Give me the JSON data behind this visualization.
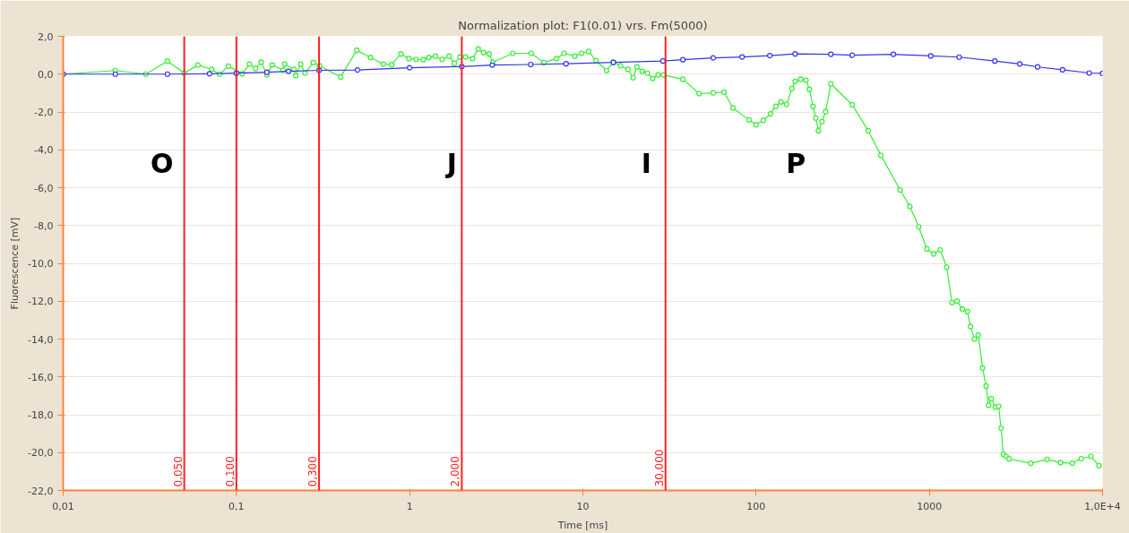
{
  "chart_data": {
    "type": "line",
    "title": "Normalization plot: F1(0.01) vrs. Fm(5000)",
    "xlabel": "Time [ms]",
    "ylabel": "Fluorescence [mV]",
    "log": "x",
    "grid": "y",
    "marker": "circle",
    "line_style": "solid",
    "xlim": [
      0.01,
      10000
    ],
    "ylim": [
      -22,
      2
    ],
    "xticks": [
      {
        "value": 0.01,
        "label": "0,01"
      },
      {
        "value": 0.1,
        "label": "0,1"
      },
      1,
      10,
      100,
      1000,
      {
        "value": 10000,
        "label": "1,0E+4"
      }
    ],
    "yticks": [
      {
        "value": 2,
        "label": "2,0"
      },
      {
        "value": 0,
        "label": "0,0"
      },
      {
        "value": -2,
        "label": "-2,0"
      },
      {
        "value": -4,
        "label": "-4,0"
      },
      {
        "value": -6,
        "label": "-6,0"
      },
      {
        "value": -8,
        "label": "-8,0"
      },
      {
        "value": -10,
        "label": "-10,0"
      },
      {
        "value": -12,
        "label": "-12,0"
      },
      {
        "value": -14,
        "label": "-14,0"
      },
      {
        "value": -16,
        "label": "-16,0"
      },
      {
        "value": -18,
        "label": "-18,0"
      },
      {
        "value": -20,
        "label": "-20,0"
      },
      {
        "value": -22,
        "label": "-22,0"
      }
    ],
    "series": [
      {
        "color": "#33ee33",
        "x": [
          0.01,
          0.02,
          0.03,
          0.04,
          0.05,
          0.06,
          0.072,
          0.08,
          0.09,
          0.108,
          0.119,
          0.129,
          0.139,
          0.15,
          0.161,
          0.186,
          0.19,
          0.215,
          0.22,
          0.235,
          0.249,
          0.278,
          0.302,
          0.4,
          0.495,
          0.595,
          0.705,
          0.788,
          0.89,
          0.99,
          1.09,
          1.2,
          1.29,
          1.41,
          1.54,
          1.69,
          1.81,
          1.95,
          2.1,
          2.31,
          2.49,
          2.67,
          2.88,
          3.02,
          3.94,
          5.03,
          5.96,
          7.05,
          7.78,
          8.99,
          9.82,
          10.8,
          11.9,
          13.7,
          15,
          16.5,
          18.2,
          19.5,
          20.5,
          22,
          23.6,
          25.3,
          27.2,
          29.2,
          37.8,
          46.9,
          56.6,
          65.3,
          73.5,
          91,
          100,
          110,
          121,
          130,
          139,
          150,
          161,
          168,
          181,
          194,
          203,
          213,
          221,
          229,
          240,
          252,
          270,
          359,
          444,
          525,
          678,
          772,
          869,
          968,
          1059,
          1156,
          1259,
          1352,
          1446,
          1552,
          1660,
          1729,
          1820,
          1915,
          2030,
          2128,
          2197,
          2277,
          2406,
          2512,
          2594,
          2678,
          2775,
          2885,
          3846,
          4786,
          5715,
          6686,
          7530,
          8570,
          9540
        ],
        "values": [
          0.0,
          0.19,
          0.0,
          0.69,
          0.06,
          0.48,
          0.25,
          0.0,
          0.42,
          0.02,
          0.53,
          0.3,
          0.63,
          -0.04,
          0.48,
          0.21,
          0.53,
          0.25,
          -0.08,
          0.53,
          0.06,
          0.61,
          0.44,
          -0.15,
          1.26,
          0.88,
          0.53,
          0.5,
          1.07,
          0.82,
          0.78,
          0.76,
          0.88,
          0.95,
          0.78,
          0.95,
          0.57,
          0.91,
          0.91,
          0.82,
          1.33,
          1.14,
          1.07,
          0.63,
          1.1,
          1.1,
          0.61,
          0.82,
          1.1,
          0.95,
          1.1,
          1.2,
          0.72,
          0.19,
          0.63,
          0.44,
          0.25,
          -0.19,
          0.38,
          0.15,
          0.06,
          -0.23,
          -0.04,
          -0.04,
          -0.27,
          -1.03,
          -0.99,
          -0.95,
          -1.79,
          -2.42,
          -2.67,
          -2.44,
          -2.1,
          -1.7,
          -1.47,
          -1.6,
          -0.76,
          -0.38,
          -0.27,
          -0.32,
          -0.8,
          -1.71,
          -2.32,
          -2.99,
          -2.51,
          -1.98,
          -0.51,
          -1.62,
          -2.99,
          -4.29,
          -6.12,
          -6.99,
          -8.07,
          -9.24,
          -9.5,
          -9.29,
          -10.2,
          -12.07,
          -11.99,
          -12.42,
          -12.55,
          -13.34,
          -14.0,
          -13.79,
          -15.53,
          -16.48,
          -17.5,
          -17.15,
          -17.6,
          -17.55,
          -18.71,
          -20.09,
          -20.2,
          -20.33,
          -20.56,
          -20.36,
          -20.53,
          -20.56,
          -20.32,
          -20.2,
          -20.69
        ]
      },
      {
        "color": "#3333ee",
        "x": [
          0.01,
          0.02,
          0.04,
          0.07,
          0.1,
          0.15,
          0.2,
          0.3,
          0.5,
          1,
          2,
          3,
          5,
          8,
          15,
          29,
          37.8,
          56.6,
          83,
          120,
          168,
          270,
          359,
          620,
          1019,
          1486,
          2387,
          3325,
          4216,
          5875,
          8375,
          10000
        ],
        "values": [
          0.0,
          0.0,
          0.0,
          0.02,
          0.05,
          0.1,
          0.15,
          0.2,
          0.22,
          0.34,
          0.4,
          0.48,
          0.51,
          0.55,
          0.62,
          0.69,
          0.76,
          0.86,
          0.91,
          0.98,
          1.07,
          1.05,
          1.0,
          1.05,
          0.96,
          0.9,
          0.69,
          0.54,
          0.38,
          0.23,
          0.06,
          0.04
        ]
      }
    ],
    "ref_lines": [
      {
        "axis": "x",
        "value": 0.05,
        "label": "0,050",
        "color": "#ff2020"
      },
      {
        "axis": "x",
        "value": 0.1,
        "label": "0,100",
        "color": "#ff2020"
      },
      {
        "axis": "x",
        "value": 0.3,
        "label": "0,300",
        "color": "#ff2020"
      },
      {
        "axis": "x",
        "value": 2,
        "label": "2,000",
        "color": "#ff2020"
      },
      {
        "axis": "x",
        "value": 30,
        "label": "30,000",
        "color": "#ff2020"
      }
    ],
    "annotations": [
      "O",
      "J",
      "I",
      "P"
    ]
  }
}
